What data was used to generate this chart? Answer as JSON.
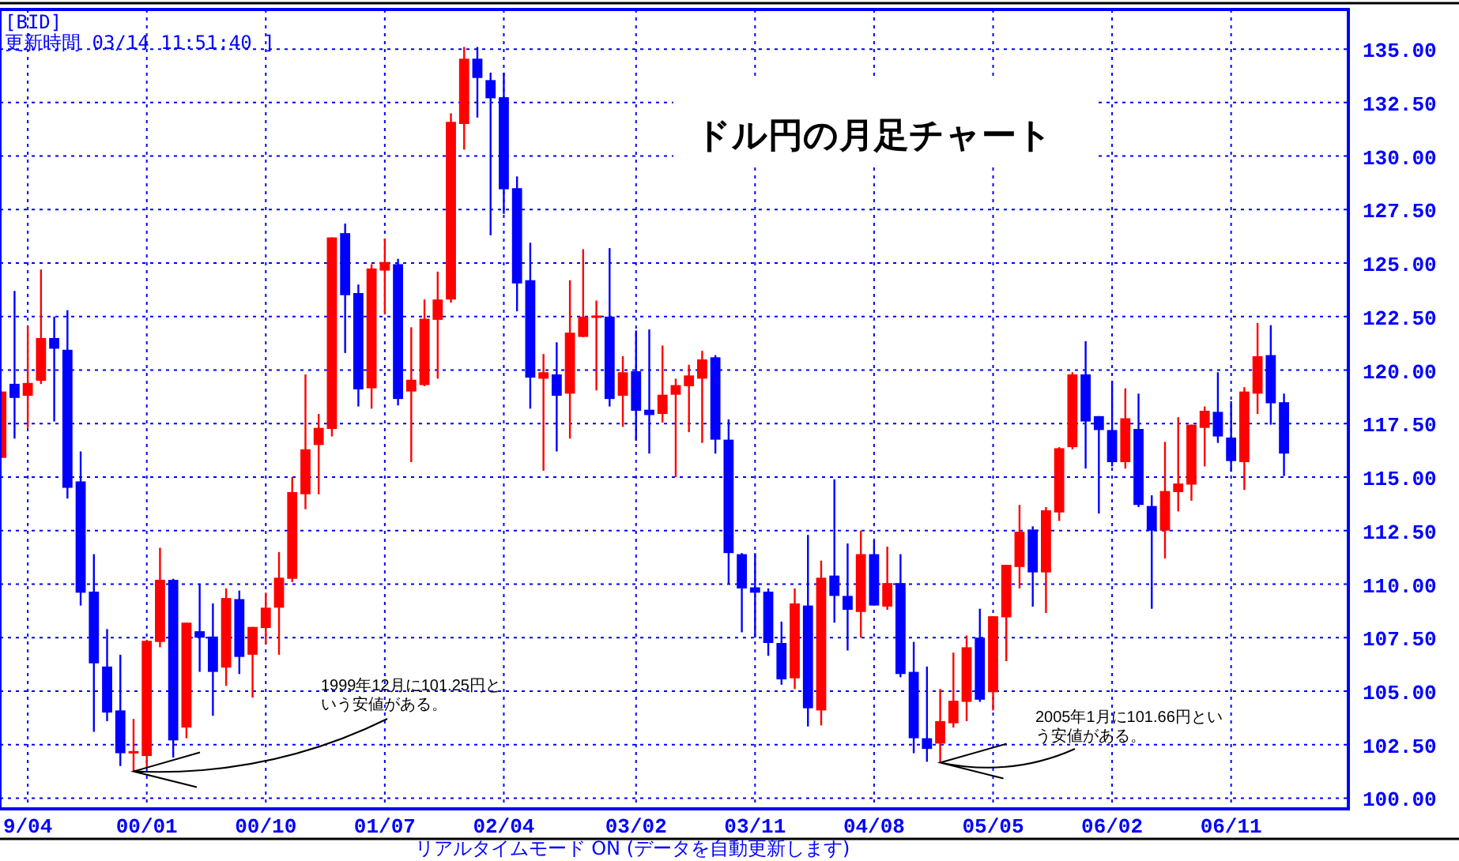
{
  "chart_data": {
    "type": "candlestick",
    "title": "ドル円の月足チャート",
    "x": [
      "1999-02",
      "1999-03",
      "1999-04",
      "1999-05",
      "1999-06",
      "1999-07",
      "1999-08",
      "1999-09",
      "1999-10",
      "1999-11",
      "1999-12",
      "2000-01",
      "2000-02",
      "2000-03",
      "2000-04",
      "2000-05",
      "2000-06",
      "2000-07",
      "2000-08",
      "2000-09",
      "2000-10",
      "2000-11",
      "2000-12",
      "2001-01",
      "2001-02",
      "2001-03",
      "2001-04",
      "2001-05",
      "2001-06",
      "2001-07",
      "2001-08",
      "2001-09",
      "2001-10",
      "2001-11",
      "2001-12",
      "2002-01",
      "2002-02",
      "2002-03",
      "2002-04",
      "2002-05",
      "2002-06",
      "2002-07",
      "2002-08",
      "2002-09",
      "2002-10",
      "2002-11",
      "2002-12",
      "2003-01",
      "2003-02",
      "2003-03",
      "2003-04",
      "2003-05",
      "2003-06",
      "2003-07",
      "2003-08",
      "2003-09",
      "2003-10",
      "2003-11",
      "2003-12",
      "2004-01",
      "2004-02",
      "2004-03",
      "2004-04",
      "2004-05",
      "2004-06",
      "2004-07",
      "2004-08",
      "2004-09",
      "2004-10",
      "2004-11",
      "2004-12",
      "2005-01",
      "2005-02",
      "2005-03",
      "2005-04",
      "2005-05",
      "2005-06",
      "2005-07",
      "2005-08",
      "2005-09",
      "2005-10",
      "2005-11",
      "2005-12",
      "2006-01",
      "2006-02",
      "2006-03",
      "2006-04",
      "2006-05",
      "2006-06",
      "2006-07",
      "2006-08",
      "2006-09",
      "2006-10",
      "2006-11",
      "2006-12",
      "2007-01",
      "2007-02",
      "2007-03"
    ],
    "ohlc": [
      [
        115.9,
        119.0,
        115.9,
        119.0
      ],
      [
        119.36,
        123.7,
        116.8,
        118.7
      ],
      [
        118.8,
        122.05,
        117.3,
        119.4
      ],
      [
        119.5,
        124.7,
        119.35,
        121.5
      ],
      [
        121.5,
        122.5,
        117.6,
        121.0
      ],
      [
        120.95,
        122.8,
        114.0,
        114.5
      ],
      [
        114.8,
        116.2,
        109.0,
        109.6
      ],
      [
        109.65,
        111.4,
        103.1,
        106.3
      ],
      [
        106.15,
        107.9,
        103.6,
        104.0
      ],
      [
        104.1,
        106.7,
        101.5,
        102.1
      ],
      [
        102.1,
        103.7,
        101.25,
        102.2
      ],
      [
        101.97,
        107.4,
        101.4,
        107.35
      ],
      [
        107.3,
        111.7,
        107.05,
        110.2
      ],
      [
        110.2,
        110.25,
        101.9,
        102.7
      ],
      [
        103.3,
        108.2,
        102.8,
        108.2
      ],
      [
        107.8,
        110.0,
        105.9,
        107.5
      ],
      [
        107.55,
        109.1,
        103.85,
        105.9
      ],
      [
        106.1,
        109.8,
        105.25,
        109.35
      ],
      [
        109.3,
        109.7,
        105.8,
        106.6
      ],
      [
        106.7,
        108.0,
        104.7,
        108.0
      ],
      [
        107.95,
        109.6,
        107.2,
        108.9
      ],
      [
        108.9,
        111.5,
        106.7,
        110.3
      ],
      [
        110.25,
        115.0,
        110.1,
        114.3
      ],
      [
        114.2,
        119.8,
        113.5,
        116.3
      ],
      [
        116.5,
        117.95,
        114.2,
        117.3
      ],
      [
        117.25,
        126.2,
        116.9,
        126.2
      ],
      [
        126.4,
        126.85,
        120.8,
        123.5
      ],
      [
        123.6,
        124.0,
        118.3,
        119.1
      ],
      [
        119.15,
        124.95,
        118.2,
        124.75
      ],
      [
        124.65,
        126.15,
        122.6,
        125.05
      ],
      [
        124.95,
        125.2,
        118.35,
        118.65
      ],
      [
        119.0,
        122.0,
        115.7,
        119.55
      ],
      [
        119.3,
        123.3,
        119.25,
        122.4
      ],
      [
        122.35,
        124.6,
        119.6,
        123.3
      ],
      [
        123.3,
        132.0,
        123.15,
        131.6
      ],
      [
        131.5,
        135.1,
        130.3,
        134.55
      ],
      [
        134.55,
        135.1,
        131.8,
        133.65
      ],
      [
        133.55,
        133.9,
        126.3,
        132.7
      ],
      [
        132.75,
        133.9,
        127.3,
        128.45
      ],
      [
        128.5,
        129.05,
        122.75,
        124.05
      ],
      [
        124.2,
        125.95,
        118.2,
        119.65
      ],
      [
        119.6,
        120.75,
        115.3,
        119.9
      ],
      [
        119.8,
        121.3,
        116.2,
        118.8
      ],
      [
        118.9,
        124.2,
        116.8,
        121.75
      ],
      [
        121.55,
        125.65,
        121.55,
        122.5
      ],
      [
        122.45,
        123.25,
        119.05,
        122.55
      ],
      [
        122.5,
        125.7,
        118.3,
        118.65
      ],
      [
        118.8,
        120.65,
        117.35,
        119.9
      ],
      [
        119.95,
        121.85,
        116.7,
        118.1
      ],
      [
        118.15,
        121.9,
        116.1,
        117.9
      ],
      [
        117.95,
        121.15,
        117.55,
        118.85
      ],
      [
        118.85,
        119.6,
        115.0,
        119.3
      ],
      [
        119.25,
        120.25,
        117.1,
        119.75
      ],
      [
        119.6,
        120.9,
        116.6,
        120.5
      ],
      [
        120.6,
        120.7,
        116.1,
        116.75
      ],
      [
        116.75,
        117.7,
        110.0,
        111.45
      ],
      [
        111.4,
        111.45,
        107.75,
        109.8
      ],
      [
        109.85,
        111.45,
        107.5,
        109.6
      ],
      [
        109.65,
        109.8,
        106.65,
        107.25
      ],
      [
        107.25,
        108.25,
        105.3,
        105.55
      ],
      [
        105.6,
        109.8,
        105.1,
        109.1
      ],
      [
        109.0,
        112.3,
        103.35,
        104.2
      ],
      [
        104.1,
        111.1,
        103.4,
        110.3
      ],
      [
        110.4,
        114.9,
        108.2,
        109.45
      ],
      [
        109.45,
        111.9,
        106.9,
        108.8
      ],
      [
        108.7,
        112.5,
        107.5,
        111.4
      ],
      [
        111.4,
        112.05,
        109.0,
        109.0
      ],
      [
        108.95,
        111.75,
        108.8,
        110.05
      ],
      [
        110.05,
        111.4,
        105.65,
        105.8
      ],
      [
        105.9,
        107.3,
        102.1,
        102.8
      ],
      [
        102.8,
        106.15,
        101.7,
        102.3
      ],
      [
        102.55,
        105.1,
        101.66,
        103.6
      ],
      [
        103.5,
        106.8,
        103.3,
        104.55
      ],
      [
        104.5,
        107.6,
        103.6,
        107.05
      ],
      [
        107.5,
        108.85,
        104.5,
        104.6
      ],
      [
        104.95,
        108.5,
        104.1,
        108.5
      ],
      [
        108.45,
        110.9,
        106.4,
        110.9
      ],
      [
        110.8,
        113.7,
        109.8,
        112.45
      ],
      [
        112.55,
        112.7,
        108.95,
        110.55
      ],
      [
        110.55,
        113.6,
        108.65,
        113.45
      ],
      [
        113.35,
        116.4,
        112.95,
        116.35
      ],
      [
        116.4,
        119.9,
        116.3,
        119.8
      ],
      [
        119.8,
        121.35,
        115.4,
        117.6
      ],
      [
        117.85,
        117.85,
        113.3,
        117.2
      ],
      [
        117.2,
        119.5,
        115.5,
        115.7
      ],
      [
        115.7,
        119.15,
        115.4,
        117.75
      ],
      [
        117.25,
        118.9,
        113.6,
        113.7
      ],
      [
        113.65,
        114.15,
        108.85,
        112.5
      ],
      [
        112.5,
        116.65,
        111.2,
        114.35
      ],
      [
        114.3,
        117.8,
        113.4,
        114.7
      ],
      [
        114.65,
        117.45,
        113.9,
        117.45
      ],
      [
        117.3,
        118.3,
        115.5,
        118.1
      ],
      [
        118.05,
        119.9,
        116.6,
        116.9
      ],
      [
        116.85,
        118.55,
        115.25,
        115.75
      ],
      [
        115.7,
        119.2,
        114.4,
        119.0
      ],
      [
        118.9,
        122.2,
        117.95,
        120.65
      ],
      [
        120.7,
        122.1,
        117.45,
        118.45
      ],
      [
        118.5,
        118.9,
        115.05,
        116.1
      ]
    ],
    "colors": [
      "#ff0000",
      "#0000ff",
      "#ff0000",
      "#ff0000",
      "#0000ff",
      "#0000ff",
      "#0000ff",
      "#0000ff",
      "#0000ff",
      "#0000ff",
      "#ff0000",
      "#ff0000",
      "#ff0000",
      "#0000ff",
      "#ff0000",
      "#0000ff",
      "#0000ff",
      "#ff0000",
      "#0000ff",
      "#ff0000",
      "#ff0000",
      "#ff0000",
      "#ff0000",
      "#ff0000",
      "#ff0000",
      "#ff0000",
      "#0000ff",
      "#0000ff",
      "#ff0000",
      "#ff0000",
      "#0000ff",
      "#ff0000",
      "#ff0000",
      "#ff0000",
      "#ff0000",
      "#ff0000",
      "#0000ff",
      "#0000ff",
      "#0000ff",
      "#0000ff",
      "#0000ff",
      "#ff0000",
      "#0000ff",
      "#ff0000",
      "#ff0000",
      "#ff0000",
      "#0000ff",
      "#ff0000",
      "#0000ff",
      "#0000ff",
      "#ff0000",
      "#ff0000",
      "#ff0000",
      "#ff0000",
      "#0000ff",
      "#0000ff",
      "#0000ff",
      "#0000ff",
      "#0000ff",
      "#0000ff",
      "#ff0000",
      "#0000ff",
      "#ff0000",
      "#0000ff",
      "#0000ff",
      "#ff0000",
      "#0000ff",
      "#ff0000",
      "#0000ff",
      "#0000ff",
      "#0000ff",
      "#ff0000",
      "#ff0000",
      "#ff0000",
      "#0000ff",
      "#ff0000",
      "#ff0000",
      "#ff0000",
      "#0000ff",
      "#ff0000",
      "#ff0000",
      "#ff0000",
      "#0000ff",
      "#0000ff",
      "#0000ff",
      "#ff0000",
      "#0000ff",
      "#0000ff",
      "#ff0000",
      "#ff0000",
      "#ff0000",
      "#ff0000",
      "#0000ff",
      "#0000ff",
      "#ff0000",
      "#ff0000",
      "#0000ff",
      "#0000ff"
    ],
    "xlim": [
      "1999-01-28",
      "2007-07-27"
    ],
    "xticks": [
      {
        "value": "1999-04",
        "label": "9/04"
      },
      {
        "value": "2000-01",
        "label": "00/01"
      },
      {
        "value": "2000-10",
        "label": "00/10"
      },
      {
        "value": "2001-07",
        "label": "01/07"
      },
      {
        "value": "2002-04",
        "label": "02/04"
      },
      {
        "value": "2003-02",
        "label": "03/02"
      },
      {
        "value": "2003-11",
        "label": "03/11"
      },
      {
        "value": "2004-08",
        "label": "04/08"
      },
      {
        "value": "2005-05",
        "label": "05/05"
      },
      {
        "value": "2006-02",
        "label": "06/02"
      },
      {
        "value": "2006-11",
        "label": "06/11"
      }
    ],
    "ylim": [
      99.5,
      136.85
    ],
    "yticks": [
      {
        "value": 100,
        "label": "100.00"
      },
      {
        "value": 102.5,
        "label": "102.50"
      },
      {
        "value": 105,
        "label": "105.00"
      },
      {
        "value": 107.5,
        "label": "107.50"
      },
      {
        "value": 110,
        "label": "110.00"
      },
      {
        "value": 112.5,
        "label": "112.50"
      },
      {
        "value": 115,
        "label": "115.00"
      },
      {
        "value": 117.5,
        "label": "117.50"
      },
      {
        "value": 120,
        "label": "120.00"
      },
      {
        "value": 122.5,
        "label": "122.50"
      },
      {
        "value": 125,
        "label": "125.00"
      },
      {
        "value": 127.5,
        "label": "127.50"
      },
      {
        "value": 130,
        "label": "130.00"
      },
      {
        "value": 132.5,
        "label": "132.50"
      },
      {
        "value": 135,
        "label": "135.00"
      }
    ],
    "grid": true,
    "annotations": [
      "[BID]",
      "更新時間 03/14 11:51:40 ]",
      "リアルタイムモード ON (データを自動更新します)",
      {
        "text": "1999年12月に101.25円という安値がある。",
        "x": "1999-12",
        "y": 101.25
      },
      {
        "text": "2005年1月に101.66円という安値がある。",
        "x": "2005-01",
        "y": 101.66
      }
    ]
  }
}
